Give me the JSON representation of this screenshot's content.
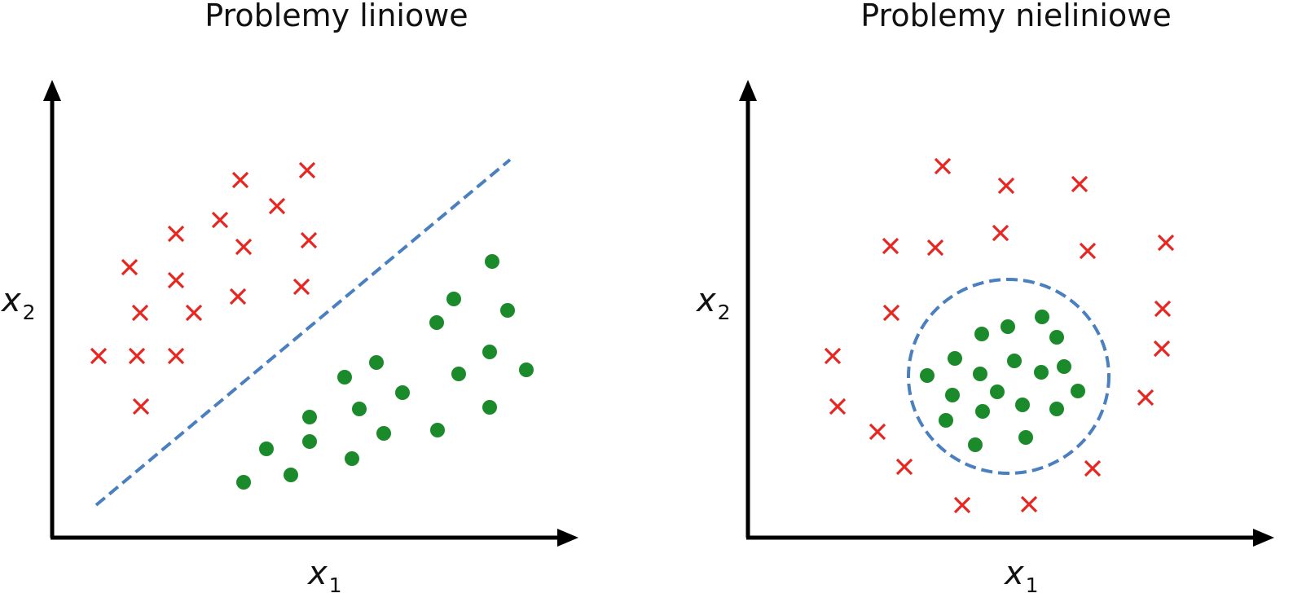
{
  "colors": {
    "cross": "#e8251f",
    "dot": "#1b8a2a",
    "boundary": "#4a7fc0",
    "axis": "#000000"
  },
  "panels": [
    {
      "title": "Problemy liniowe",
      "x_label": "x",
      "x_label_sub": "1",
      "y_label": "x",
      "y_label_sub": "2",
      "boundary_type": "line"
    },
    {
      "title": "Problemy nieliniowe",
      "x_label": "x",
      "x_label_sub": "1",
      "y_label": "x",
      "y_label_sub": "2",
      "boundary_type": "circle"
    }
  ]
}
